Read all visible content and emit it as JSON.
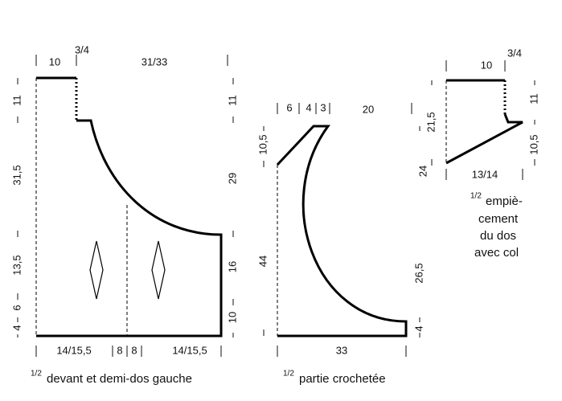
{
  "front_piece": {
    "labels": [
      "10",
      "3/4",
      "31/33",
      "11",
      "31,5",
      "13,5",
      "6",
      "4",
      "11",
      "29",
      "16",
      "10",
      "14/15,5",
      "8",
      "8",
      "14/15,5"
    ],
    "caption": {
      "fraction": "1/2",
      "text": "devant et demi-dos gauche"
    }
  },
  "crochet_piece": {
    "labels": [
      "6",
      "4",
      "3",
      "20",
      "10,5",
      "44",
      "26,5",
      "4",
      "33"
    ],
    "caption": {
      "fraction": "1/2",
      "text": "partie crochetée"
    }
  },
  "yoke_piece": {
    "labels": [
      "10",
      "3/4",
      "21,5",
      "11",
      "10,5",
      "24",
      "13/14"
    ],
    "caption": {
      "fraction": "1/2",
      "lines": [
        "empiè-",
        "cement",
        "du dos",
        "avec col"
      ]
    }
  }
}
